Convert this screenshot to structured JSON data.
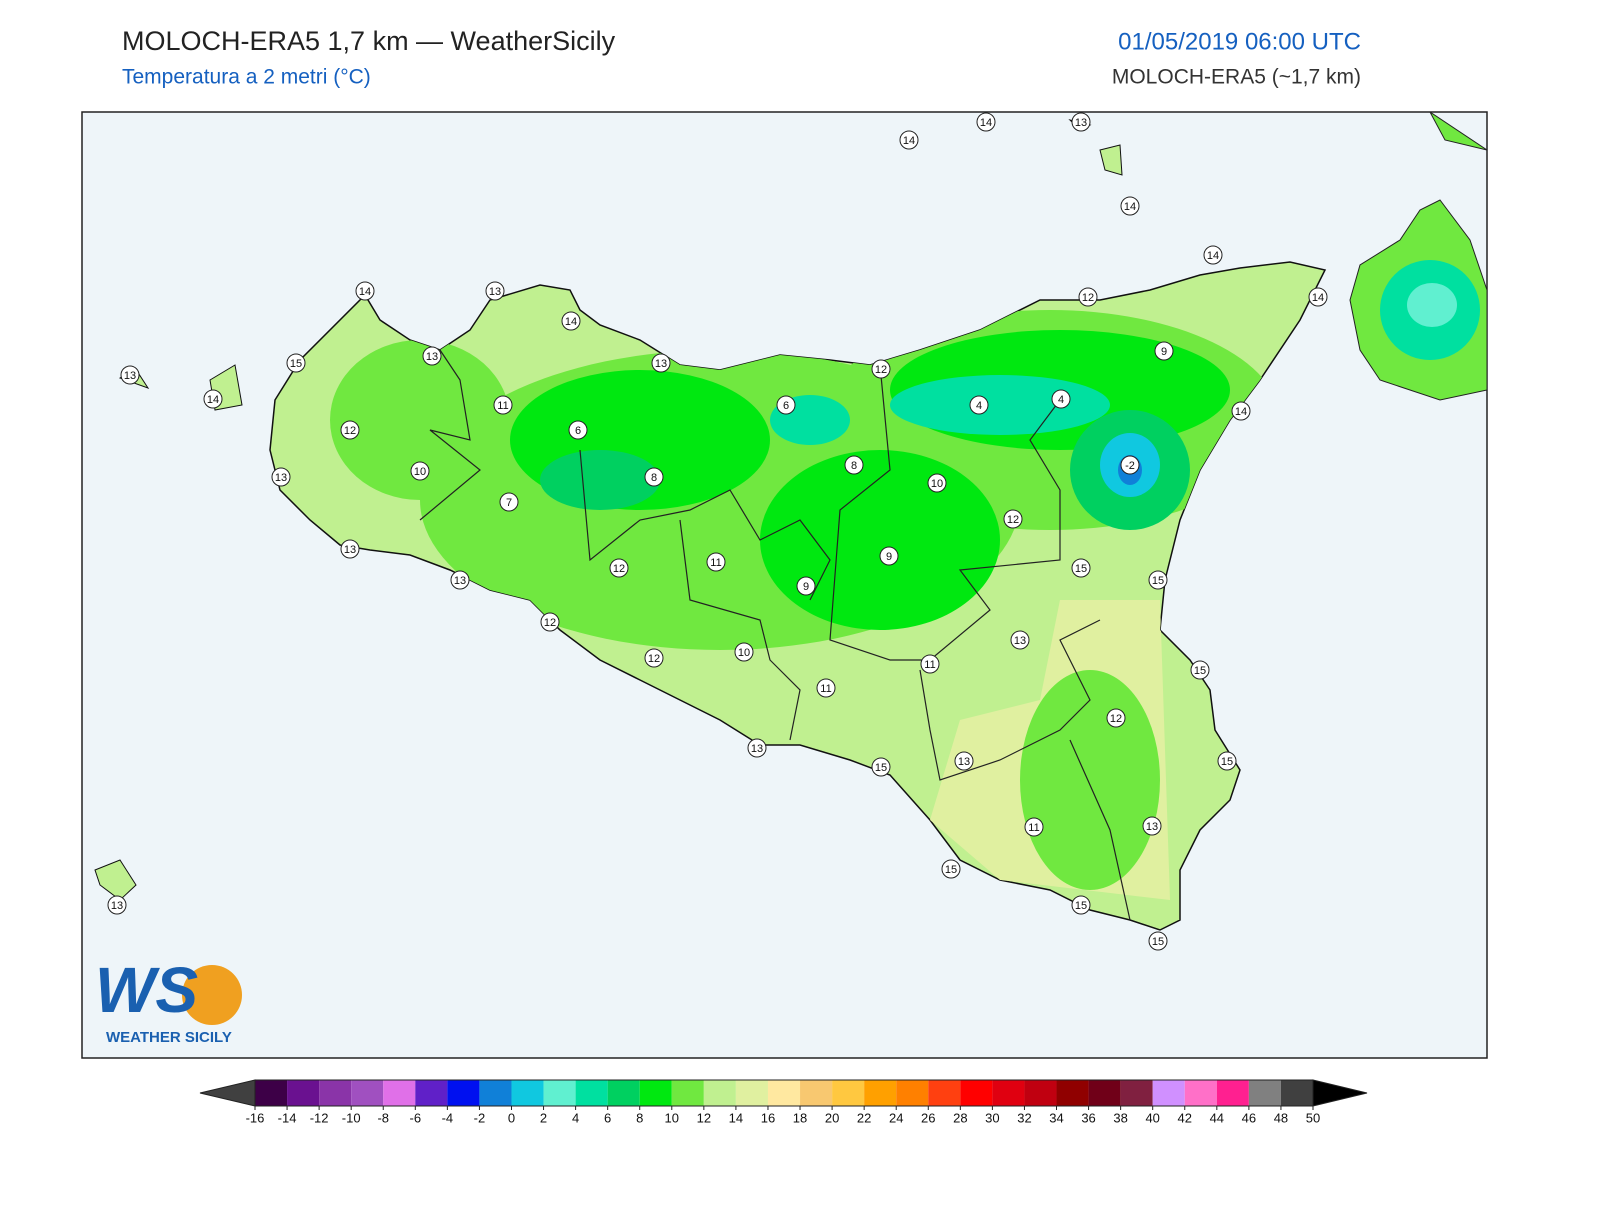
{
  "header": {
    "title": "MOLOCH-ERA5 1,7 km — WeatherSicily",
    "subtitle": "Temperatura a 2 metri (°C)",
    "datetime": "01/05/2019 06:00 UTC",
    "model": "MOLOCH-ERA5 (~1,7 km)"
  },
  "logo": {
    "initials": "WS",
    "name": "WEATHER SICILY"
  },
  "stations": [
    14,
    14,
    13,
    14,
    14,
    14,
    12,
    9,
    14,
    14,
    13,
    14,
    13,
    15,
    13,
    14,
    13,
    12,
    11,
    6,
    6,
    4,
    4,
    12,
    10,
    13,
    8,
    8,
    -2,
    10,
    7,
    12,
    13,
    13,
    11,
    12,
    9,
    15,
    15,
    9,
    12,
    13,
    12,
    10,
    11,
    15,
    11,
    12,
    13,
    15,
    13,
    15,
    13,
    11,
    15,
    15,
    15,
    13
  ],
  "colorbar": {
    "ticks": [
      -16,
      -14,
      -12,
      -10,
      -8,
      -6,
      -4,
      -2,
      0,
      2,
      4,
      6,
      8,
      10,
      12,
      14,
      16,
      18,
      20,
      22,
      24,
      26,
      28,
      30,
      32,
      34,
      36,
      38,
      40,
      42,
      44,
      46,
      48,
      50
    ],
    "colors": [
      "#3d0047",
      "#6a1190",
      "#8a34a8",
      "#a050c0",
      "#e070e8",
      "#6020c8",
      "#0010f0",
      "#1080d8",
      "#10c8e0",
      "#60f0d0",
      "#00e0a0",
      "#00d060",
      "#00e810",
      "#70e840",
      "#c0f090",
      "#e0f0a0",
      "#ffe8a0",
      "#f8c870",
      "#ffc840",
      "#ffa000",
      "#ff8000",
      "#ff4010",
      "#ff0000",
      "#e00010",
      "#c00010",
      "#900000",
      "#700018",
      "#802040",
      "#d090ff",
      "#ff70c8",
      "#ff2090",
      "#808080",
      "#404040"
    ],
    "under_color": "#404040",
    "over_color": "#000000"
  }
}
